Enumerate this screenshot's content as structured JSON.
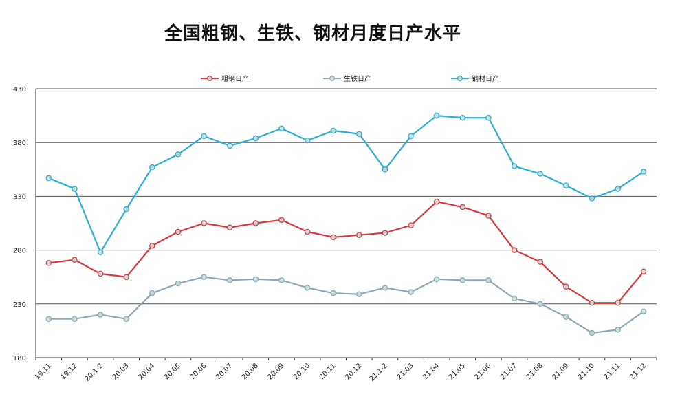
{
  "chart_data": {
    "type": "line",
    "title": "全国粗钢、生铁、钢材月度日产水平",
    "xlabel": "",
    "ylabel": "",
    "ylim": [
      180,
      430
    ],
    "yticks": [
      180,
      230,
      280,
      330,
      380,
      430
    ],
    "grid": true,
    "legend_position": "top",
    "categories": [
      "19.11",
      "19.12",
      "20.1-2",
      "20.03",
      "20.04",
      "20.05",
      "20.06",
      "20.07",
      "20.08",
      "20.09",
      "20.10",
      "20.11",
      "20.12",
      "21.1-2",
      "21.03",
      "21.04",
      "21.05",
      "21.06",
      "21.07",
      "21.08",
      "21.09",
      "21.10",
      "21.11",
      "21.12"
    ],
    "series": [
      {
        "name": "粗钢日产",
        "color": "#d9373c",
        "values": [
          268,
          271,
          258,
          255,
          284,
          297,
          305,
          301,
          305,
          308,
          297,
          292,
          294,
          296,
          303,
          325,
          320,
          312,
          280,
          269,
          246,
          231,
          231,
          260
        ]
      },
      {
        "name": "生铁日产",
        "color": "#8da7b9",
        "values": [
          216,
          216,
          220,
          216,
          240,
          249,
          255,
          252,
          253,
          252,
          245,
          240,
          239,
          245,
          241,
          253,
          252,
          252,
          235,
          230,
          218,
          203,
          206,
          223
        ]
      },
      {
        "name": "钢材日产",
        "color": "#2aaed6",
        "values": [
          347,
          337,
          278,
          318,
          357,
          369,
          386,
          377,
          384,
          393,
          382,
          391,
          388,
          355,
          386,
          405,
          403,
          403,
          358,
          351,
          340,
          328,
          337,
          353
        ]
      }
    ]
  }
}
